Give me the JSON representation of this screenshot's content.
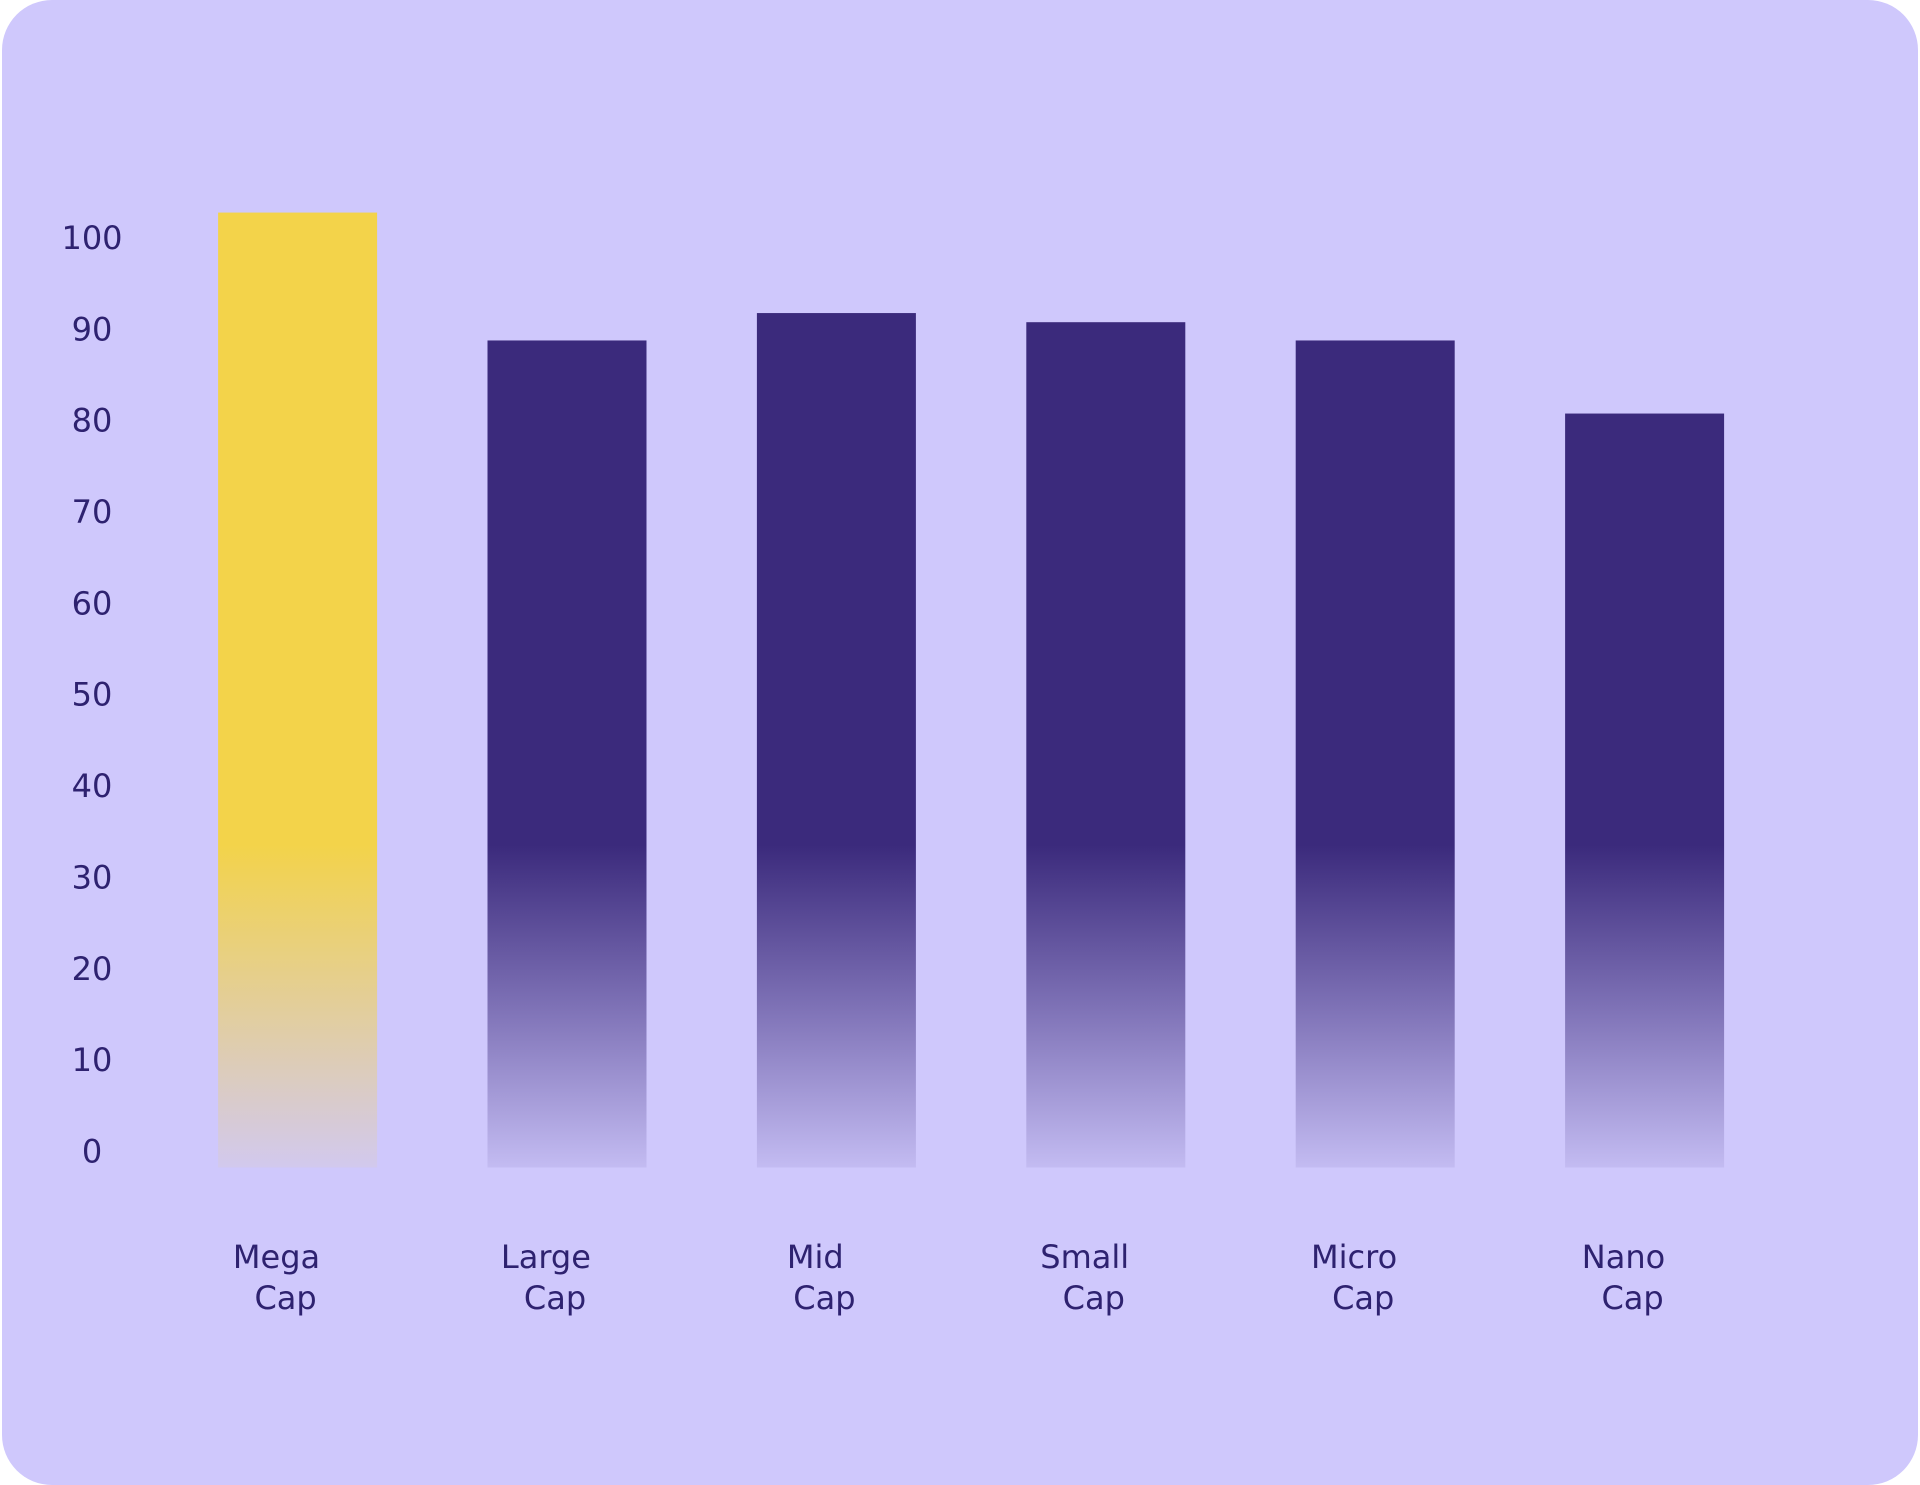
{
  "chart_data": {
    "type": "bar",
    "categories": [
      "Mega Cap",
      "Large Cap",
      "Mid Cap",
      "Small Cap",
      "Micro Cap",
      "Nano Cap"
    ],
    "values": [
      103,
      89,
      92,
      91,
      89,
      81
    ],
    "colors": [
      "#f3d34a",
      "#3b2a7c",
      "#3b2a7c",
      "#3b2a7c",
      "#3b2a7c",
      "#3b2a7c"
    ],
    "ylim": [
      0,
      105
    ],
    "yticks": [
      0,
      10,
      20,
      30,
      40,
      50,
      60,
      70,
      80,
      90,
      100
    ],
    "grid": false
  }
}
